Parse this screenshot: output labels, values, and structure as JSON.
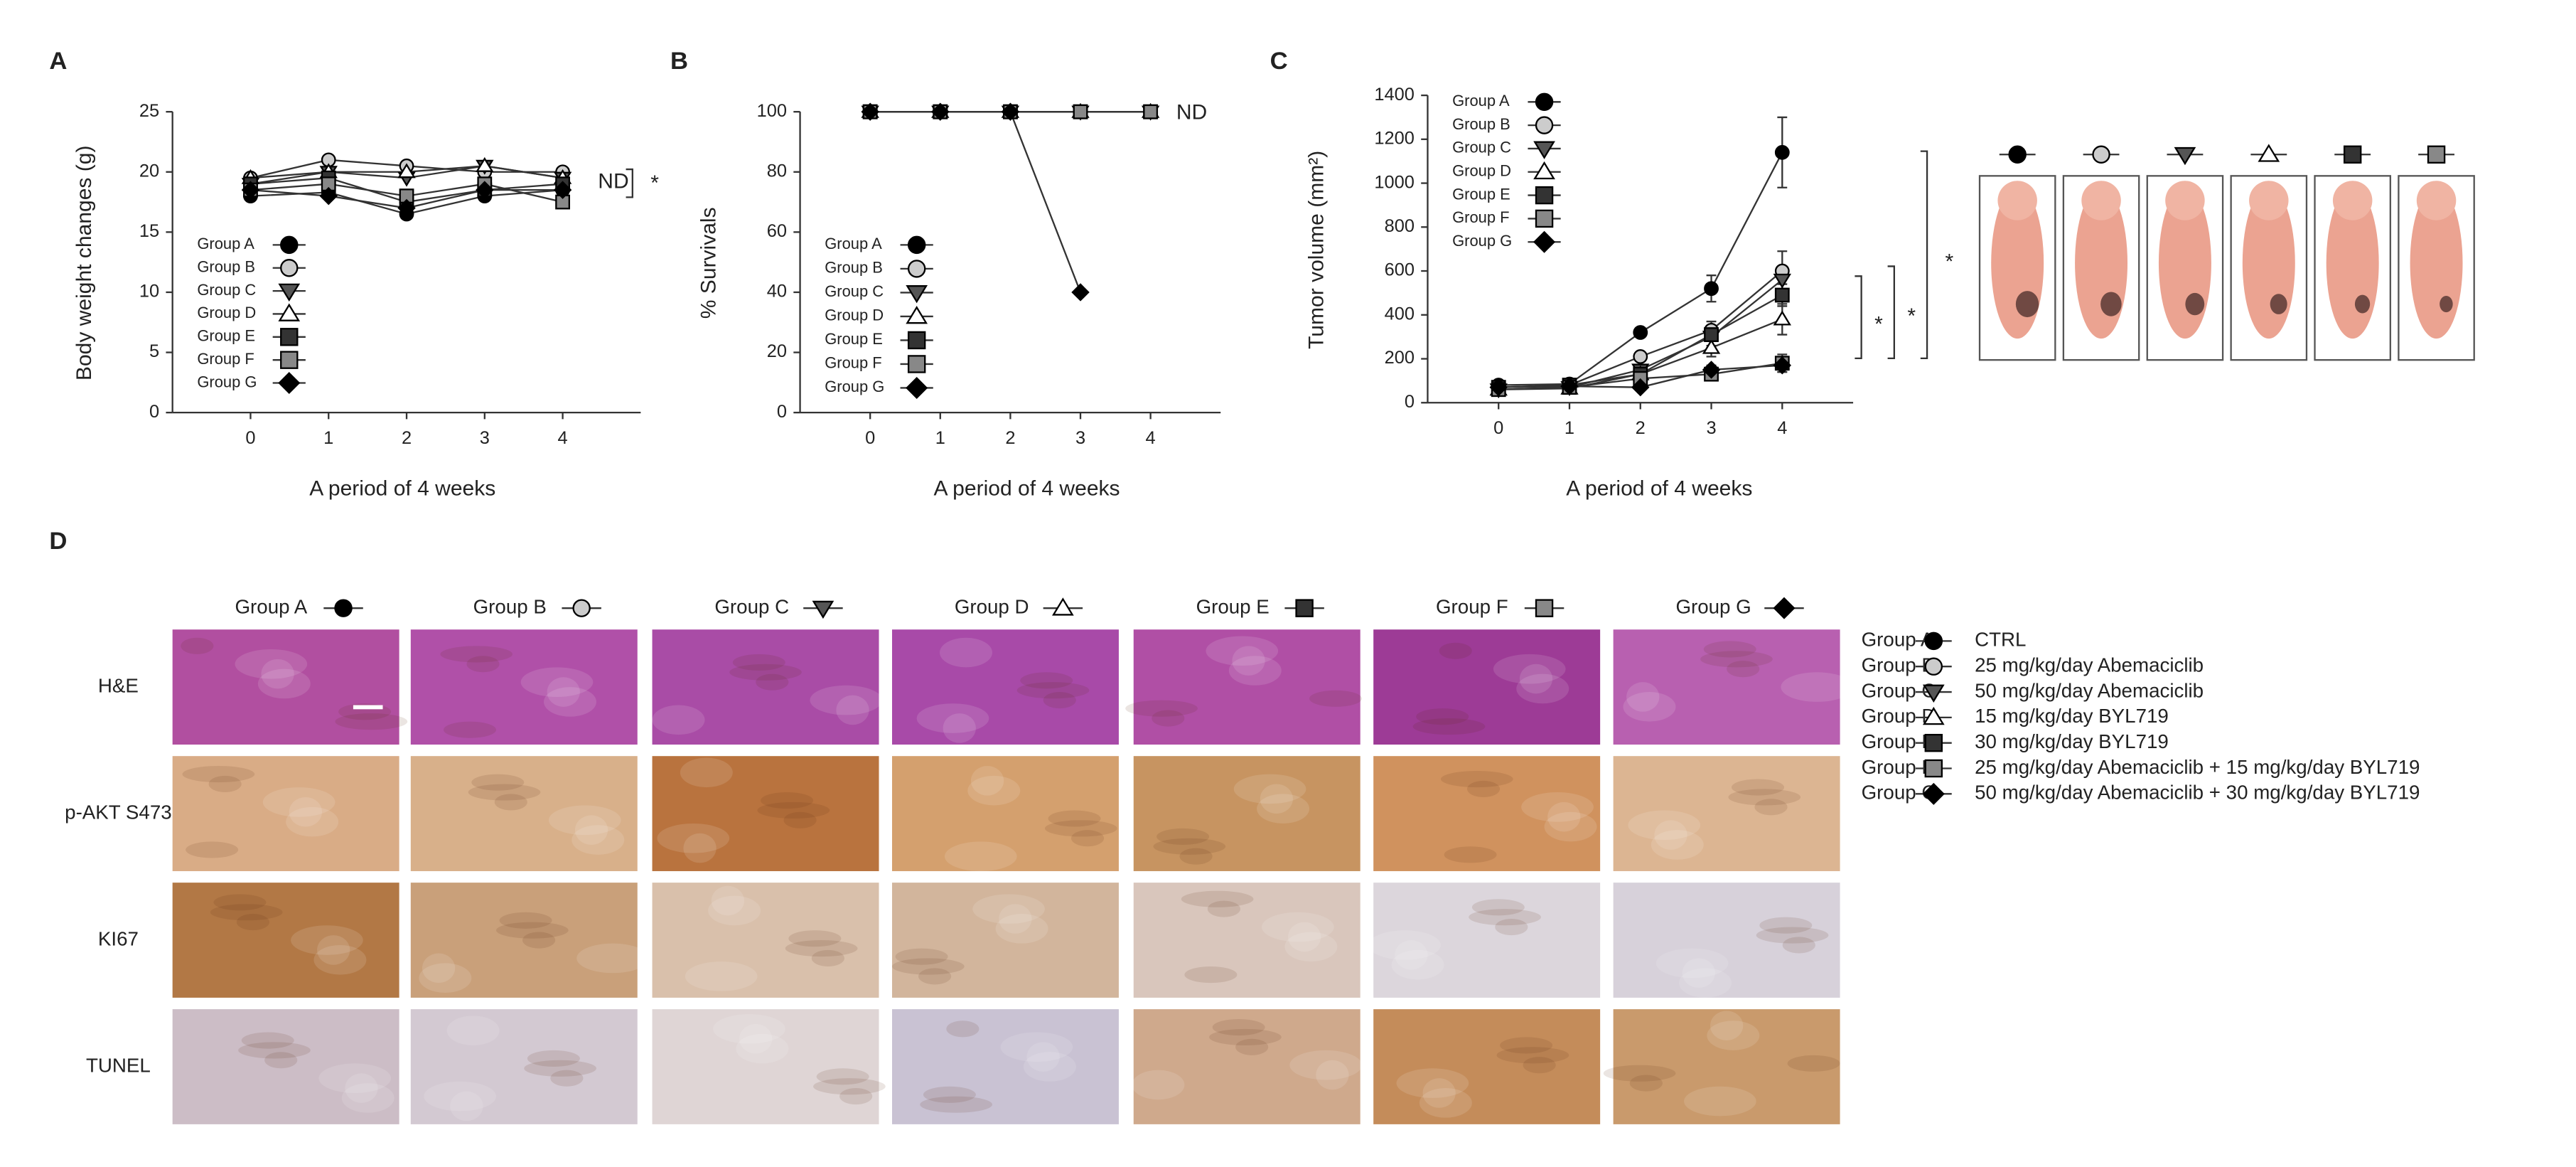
{
  "chart_data": [
    {
      "type": "line",
      "panel": "A",
      "y_label": "Body weight changes (g)",
      "x_label": "A period of 4 weeks",
      "x": [
        0,
        1,
        2,
        3,
        4
      ],
      "xlim": [
        -1,
        5
      ],
      "xticks": [
        0,
        1,
        2,
        3,
        4
      ],
      "ylim": [
        0,
        25
      ],
      "yticks": [
        0,
        5,
        10,
        15,
        20,
        25
      ],
      "annotations": [
        "ND",
        "*"
      ],
      "series": [
        {
          "name": "Group A",
          "color": "#000000",
          "marker": "circle",
          "values": [
            18,
            18.3,
            16.5,
            18,
            18.5
          ]
        },
        {
          "name": "Group B",
          "color": "#cccccc",
          "marker": "circle",
          "values": [
            19.5,
            21,
            20.5,
            20,
            20
          ]
        },
        {
          "name": "Group C",
          "color": "#555555",
          "marker": "triangle-down",
          "values": [
            19,
            20,
            19.5,
            20.5,
            19.5
          ]
        },
        {
          "name": "Group D",
          "color": "#ffffff",
          "marker": "triangle-up",
          "values": [
            19.5,
            20,
            20,
            20.5,
            19.5
          ]
        },
        {
          "name": "Group E",
          "color": "#333333",
          "marker": "square",
          "values": [
            19,
            19.5,
            17.5,
            18.5,
            19
          ]
        },
        {
          "name": "Group F",
          "color": "#888888",
          "marker": "square",
          "values": [
            18.5,
            19,
            18,
            19,
            17.5
          ]
        },
        {
          "name": "Group G",
          "color": "#000000",
          "marker": "diamond",
          "values": [
            18.5,
            18,
            17,
            18.5,
            18.5
          ]
        }
      ]
    },
    {
      "type": "line",
      "panel": "B",
      "y_label": "% Survivals",
      "x_label": "A period of 4 weeks",
      "x": [
        0,
        1,
        2,
        3,
        4
      ],
      "xlim": [
        -1,
        5
      ],
      "xticks": [
        0,
        1,
        2,
        3,
        4
      ],
      "ylim": [
        0,
        100
      ],
      "yticks": [
        0,
        20,
        40,
        60,
        80,
        100
      ],
      "annotations": [
        "ND"
      ],
      "series": [
        {
          "name": "Group A",
          "color": "#000000",
          "marker": "circle",
          "values": [
            100,
            100,
            100,
            100,
            100
          ]
        },
        {
          "name": "Group B",
          "color": "#cccccc",
          "marker": "circle",
          "values": [
            100,
            100,
            100,
            100,
            100
          ]
        },
        {
          "name": "Group C",
          "color": "#555555",
          "marker": "triangle-down",
          "values": [
            100,
            100,
            100,
            100,
            100
          ]
        },
        {
          "name": "Group D",
          "color": "#ffffff",
          "marker": "triangle-up",
          "values": [
            100,
            100,
            100,
            100,
            100
          ]
        },
        {
          "name": "Group E",
          "color": "#333333",
          "marker": "square",
          "values": [
            100,
            100,
            100,
            100,
            100
          ]
        },
        {
          "name": "Group F",
          "color": "#888888",
          "marker": "square",
          "values": [
            100,
            100,
            100,
            100,
            100
          ]
        },
        {
          "name": "Group G",
          "color": "#000000",
          "marker": "diamond",
          "values": [
            100,
            100,
            100,
            40,
            null
          ]
        }
      ]
    },
    {
      "type": "line",
      "panel": "C",
      "y_label": "Tumor volume (mm²)",
      "x_label": "A period of 4 weeks",
      "x": [
        0,
        1,
        2,
        3,
        4
      ],
      "xlim": [
        -1,
        5
      ],
      "xticks": [
        0,
        1,
        2,
        3,
        4
      ],
      "ylim": [
        0,
        1400
      ],
      "yticks": [
        0,
        200,
        400,
        600,
        800,
        1000,
        1200,
        1400
      ],
      "annotations": [
        "*",
        "*",
        "*"
      ],
      "series": [
        {
          "name": "Group A",
          "color": "#000000",
          "marker": "circle",
          "values": [
            80,
            85,
            320,
            520,
            1140
          ],
          "errors": [
            10,
            10,
            20,
            60,
            160
          ]
        },
        {
          "name": "Group B",
          "color": "#cccccc",
          "marker": "circle",
          "values": [
            70,
            80,
            210,
            330,
            600
          ],
          "errors": [
            5,
            5,
            20,
            40,
            90
          ]
        },
        {
          "name": "Group C",
          "color": "#555555",
          "marker": "triangle-down",
          "values": [
            60,
            70,
            150,
            300,
            560
          ],
          "errors": [
            5,
            5,
            15,
            40,
            60
          ]
        },
        {
          "name": "Group D",
          "color": "#ffffff",
          "marker": "triangle-up",
          "values": [
            60,
            65,
            130,
            250,
            380
          ],
          "errors": [
            5,
            5,
            15,
            40,
            70
          ]
        },
        {
          "name": "Group E",
          "color": "#333333",
          "marker": "square",
          "values": [
            70,
            80,
            130,
            310,
            490
          ],
          "errors": [
            5,
            5,
            15,
            30,
            50
          ]
        },
        {
          "name": "Group F",
          "color": "#888888",
          "marker": "square",
          "values": [
            60,
            70,
            110,
            130,
            180
          ],
          "errors": [
            5,
            5,
            10,
            20,
            40
          ]
        },
        {
          "name": "Group G",
          "color": "#000000",
          "marker": "diamond",
          "values": [
            70,
            75,
            70,
            150,
            170
          ],
          "errors": [
            5,
            5,
            10,
            20,
            30
          ]
        }
      ]
    }
  ],
  "panel_d": {
    "label": "D",
    "columns": [
      "Group A",
      "Group B",
      "Group C",
      "Group D",
      "Group E",
      "Group F",
      "Group G"
    ],
    "rows": [
      "H&E",
      "p-AKT S473",
      "KI67",
      "TUNEL"
    ],
    "legend": [
      {
        "group": "Group A",
        "description": "CTRL"
      },
      {
        "group": "Group B",
        "description": "25 mg/kg/day Abemaciclib"
      },
      {
        "group": "Group C",
        "description": "50 mg/kg/day Abemaciclib"
      },
      {
        "group": "Group D",
        "description": "15 mg/kg/day BYL719"
      },
      {
        "group": "Group E",
        "description": "30 mg/kg/day BYL719"
      },
      {
        "group": "Group F",
        "description": "25 mg/kg/day Abemaciclib + 15 mg/kg/day BYL719"
      },
      {
        "group": "Group G",
        "description": "50 mg/kg/day Abemaciclib + 30 mg/kg/day BYL719"
      }
    ]
  }
}
